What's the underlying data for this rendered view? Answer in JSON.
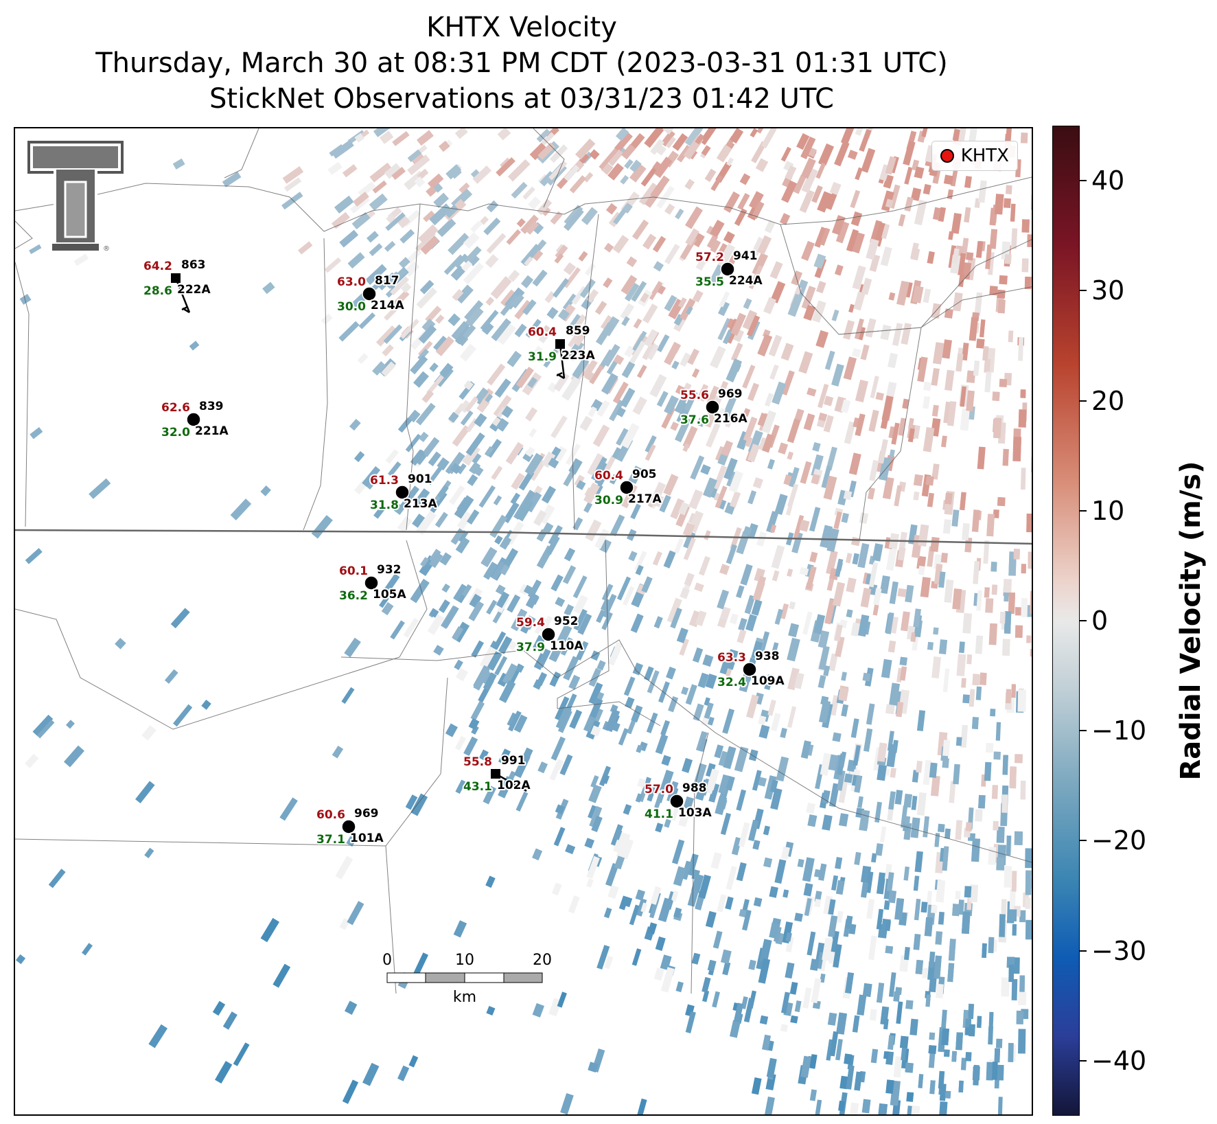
{
  "title": {
    "line1": "KHTX Velocity",
    "line2": "Thursday, March 30 at 08:31 PM CDT (2023-03-31 01:31 UTC)",
    "line3": "StickNet Observations at 03/31/23 01:42 UTC"
  },
  "legend": {
    "label": "KHTX",
    "marker_color": "#e8140f"
  },
  "colorbar": {
    "label": "Radial Velocity (m/s)",
    "ticks": [
      "40",
      "30",
      "20",
      "10",
      "0",
      "−10",
      "−20",
      "−30",
      "−40"
    ],
    "range": [
      -45,
      45
    ],
    "colors": [
      "#3a0d12",
      "#b8432e",
      "#e9e9e9",
      "#3c86b3",
      "#131638"
    ]
  },
  "scalebar": {
    "ticks": [
      "0",
      "10",
      "20"
    ],
    "unit": "km"
  },
  "logo": {
    "name": "texas-tech-double-t-logo"
  },
  "stations": [
    {
      "id": "222A",
      "temp": "64.2",
      "pressure": "863",
      "dew": "28.6",
      "marker": "square"
    },
    {
      "id": "214A",
      "temp": "63.0",
      "pressure": "817",
      "dew": "30.0",
      "marker": "circle"
    },
    {
      "id": "224A",
      "temp": "57.2",
      "pressure": "941",
      "dew": "35.5",
      "marker": "circle"
    },
    {
      "id": "223A",
      "temp": "60.4",
      "pressure": "859",
      "dew": "31.9",
      "marker": "square"
    },
    {
      "id": "221A",
      "temp": "62.6",
      "pressure": "839",
      "dew": "32.0",
      "marker": "circle"
    },
    {
      "id": "216A",
      "temp": "55.6",
      "pressure": "969",
      "dew": "37.6",
      "marker": "circle"
    },
    {
      "id": "213A",
      "temp": "61.3",
      "pressure": "901",
      "dew": "31.8",
      "marker": "circle"
    },
    {
      "id": "217A",
      "temp": "60.4",
      "pressure": "905",
      "dew": "30.9",
      "marker": "circle"
    },
    {
      "id": "105A",
      "temp": "60.1",
      "pressure": "932",
      "dew": "36.2",
      "marker": "circle"
    },
    {
      "id": "110A",
      "temp": "59.4",
      "pressure": "952",
      "dew": "37.9",
      "marker": "circle"
    },
    {
      "id": "109A",
      "temp": "63.3",
      "pressure": "938",
      "dew": "32.4",
      "marker": "circle"
    },
    {
      "id": "102A",
      "temp": "55.8",
      "pressure": "991",
      "dew": "43.1",
      "marker": "square"
    },
    {
      "id": "103A",
      "temp": "57.0",
      "pressure": "988",
      "dew": "41.1",
      "marker": "circle"
    },
    {
      "id": "101A",
      "temp": "60.6",
      "pressure": "969",
      "dew": "37.1",
      "marker": "circle"
    }
  ]
}
